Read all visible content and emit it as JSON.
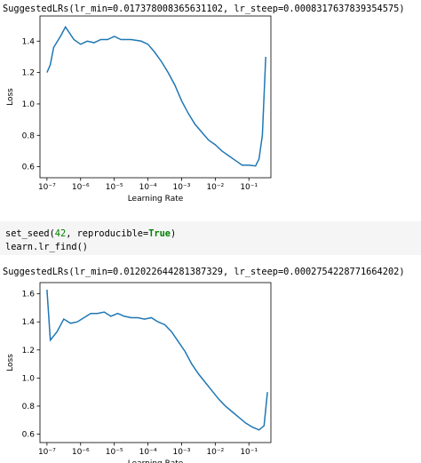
{
  "output_1": "SuggestedLRs(lr_min=0.017378008365631102, lr_steep=0.0008317637839354575)",
  "code": {
    "lines": [
      [
        "set_seed(",
        "42",
        ", reproducible=",
        "True",
        ")"
      ],
      [
        "learn.lr_find()"
      ]
    ]
  },
  "output_2": "SuggestedLRs(lr_min=0.012022644281387329, lr_steep=0.0002754228771664202)",
  "chart_data": [
    {
      "type": "line",
      "xscale": "log",
      "xlabel": "Learning Rate",
      "ylabel": "Loss",
      "color": "#1f77b4",
      "x": [
        1e-07,
        1.26e-07,
        1.58e-07,
        2.51e-07,
        3.55e-07,
        6.31e-07,
        1e-06,
        1.58e-06,
        2.51e-06,
        3.98e-06,
        6.31e-06,
        1e-05,
        1.58e-05,
        3.16e-05,
        6.31e-05,
        0.0001,
        0.000158,
        0.000251,
        0.000398,
        0.000631,
        0.001,
        0.00158,
        0.00251,
        0.00398,
        0.00631,
        0.01,
        0.0158,
        0.0251,
        0.0398,
        0.0631,
        0.1,
        0.158,
        0.2,
        0.251,
        0.316
      ],
      "values": [
        1.2,
        1.25,
        1.36,
        1.43,
        1.49,
        1.41,
        1.38,
        1.4,
        1.39,
        1.41,
        1.41,
        1.43,
        1.41,
        1.41,
        1.4,
        1.38,
        1.33,
        1.27,
        1.2,
        1.12,
        1.02,
        0.94,
        0.87,
        0.82,
        0.77,
        0.74,
        0.7,
        0.67,
        0.64,
        0.61,
        0.61,
        0.605,
        0.65,
        0.8,
        1.3
      ],
      "xlim": [
        6.2e-08,
        0.45
      ],
      "ylim": [
        0.53,
        1.56
      ],
      "xticks": [
        {
          "value": 1e-07,
          "label": "10⁻⁷"
        },
        {
          "value": 1e-06,
          "label": "10⁻⁶"
        },
        {
          "value": 1e-05,
          "label": "10⁻⁵"
        },
        {
          "value": 0.0001,
          "label": "10⁻⁴"
        },
        {
          "value": 0.001,
          "label": "10⁻³"
        },
        {
          "value": 0.01,
          "label": "10⁻²"
        },
        {
          "value": 0.1,
          "label": "10⁻¹"
        }
      ],
      "yticks": [
        0.6,
        0.8,
        {
          "value": 1,
          "label": "1.0"
        },
        1.2,
        1.4
      ]
    },
    {
      "type": "line",
      "xscale": "log",
      "xlabel": "Learning Rate",
      "ylabel": "Loss",
      "color": "#1f77b4",
      "x": [
        1e-07,
        1.26e-07,
        2e-07,
        3.16e-07,
        5.01e-07,
        7.94e-07,
        1.26e-06,
        2e-06,
        3.16e-06,
        5.01e-06,
        7.94e-06,
        1.26e-05,
        2e-05,
        3.16e-05,
        5.01e-05,
        7.94e-05,
        0.000126,
        0.0002,
        0.000316,
        0.000501,
        0.000794,
        0.00126,
        0.002,
        0.00316,
        0.00501,
        0.00794,
        0.0126,
        0.02,
        0.0316,
        0.0501,
        0.0794,
        0.126,
        0.2,
        0.282,
        0.355
      ],
      "values": [
        1.63,
        1.27,
        1.33,
        1.42,
        1.39,
        1.4,
        1.43,
        1.46,
        1.46,
        1.47,
        1.44,
        1.46,
        1.44,
        1.43,
        1.43,
        1.42,
        1.43,
        1.4,
        1.38,
        1.33,
        1.26,
        1.19,
        1.1,
        1.03,
        0.97,
        0.91,
        0.85,
        0.8,
        0.76,
        0.72,
        0.68,
        0.65,
        0.63,
        0.66,
        0.9
      ],
      "xlim": [
        6.2e-08,
        0.45
      ],
      "ylim": [
        0.54,
        1.68
      ],
      "xticks": [
        {
          "value": 1e-07,
          "label": "10⁻⁷"
        },
        {
          "value": 1e-06,
          "label": "10⁻⁶"
        },
        {
          "value": 1e-05,
          "label": "10⁻⁵"
        },
        {
          "value": 0.0001,
          "label": "10⁻⁴"
        },
        {
          "value": 0.001,
          "label": "10⁻³"
        },
        {
          "value": 0.01,
          "label": "10⁻²"
        },
        {
          "value": 0.1,
          "label": "10⁻¹"
        }
      ],
      "yticks": [
        0.6,
        0.8,
        {
          "value": 1,
          "label": "1.0"
        },
        1.2,
        1.4,
        1.6
      ]
    }
  ]
}
